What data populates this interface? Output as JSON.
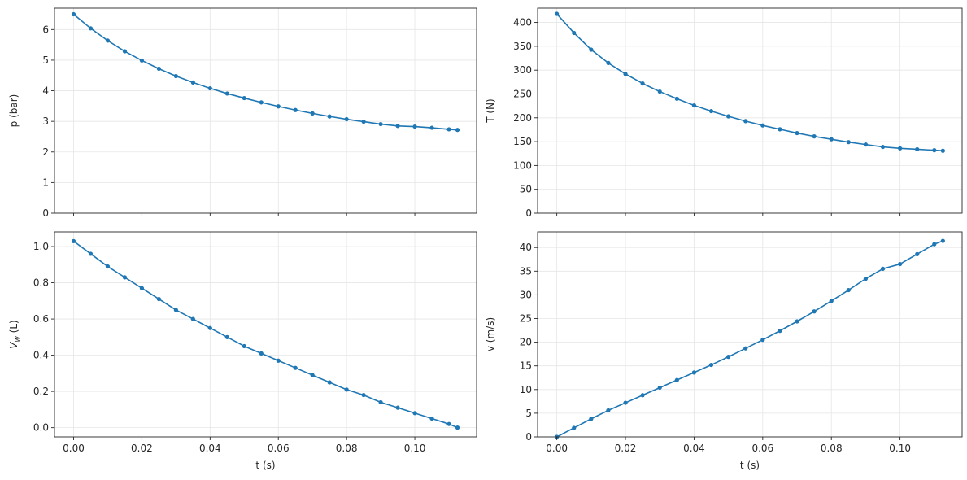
{
  "figure": {
    "background": "#ffffff",
    "line_color": "#1f77b4",
    "grid_color": "#e6e6e6",
    "spine_color": "#262626"
  },
  "chart_data": [
    {
      "type": "line",
      "xlabel": "",
      "ylabel": "p (bar)",
      "xlim": [
        -0.0056,
        0.1181
      ],
      "ylim": [
        0,
        6.7
      ],
      "xticks": [
        0.0,
        0.02,
        0.04,
        0.06,
        0.08,
        0.1
      ],
      "xtick_labels": [],
      "yticks": [
        0,
        1,
        2,
        3,
        4,
        5,
        6
      ],
      "ytick_labels": [
        "0",
        "1",
        "2",
        "3",
        "4",
        "5",
        "6"
      ],
      "grid": true,
      "marker": "circle",
      "series": [
        {
          "x": [
            0.0,
            0.005,
            0.01,
            0.015,
            0.02,
            0.025,
            0.03,
            0.035,
            0.04,
            0.045,
            0.05,
            0.055,
            0.06,
            0.065,
            0.07,
            0.075,
            0.08,
            0.085,
            0.09,
            0.095,
            0.1,
            0.105,
            0.11,
            0.1125
          ],
          "y": [
            6.5,
            6.04,
            5.64,
            5.29,
            4.99,
            4.72,
            4.48,
            4.27,
            4.08,
            3.91,
            3.76,
            3.62,
            3.49,
            3.37,
            3.26,
            3.16,
            3.07,
            2.99,
            2.91,
            2.85,
            2.83,
            2.79,
            2.74,
            2.72
          ]
        }
      ]
    },
    {
      "type": "line",
      "xlabel": "",
      "ylabel": "T (N)",
      "xlim": [
        -0.0056,
        0.1181
      ],
      "ylim": [
        0,
        430
      ],
      "xticks": [
        0.0,
        0.02,
        0.04,
        0.06,
        0.08,
        0.1
      ],
      "xtick_labels": [],
      "yticks": [
        0,
        50,
        100,
        150,
        200,
        250,
        300,
        350,
        400
      ],
      "ytick_labels": [
        "0",
        "50",
        "100",
        "150",
        "200",
        "250",
        "300",
        "350",
        "400"
      ],
      "grid": true,
      "marker": "circle",
      "series": [
        {
          "x": [
            0.0,
            0.005,
            0.01,
            0.015,
            0.02,
            0.025,
            0.03,
            0.035,
            0.04,
            0.045,
            0.05,
            0.055,
            0.06,
            0.065,
            0.07,
            0.075,
            0.08,
            0.085,
            0.09,
            0.095,
            0.1,
            0.105,
            0.11,
            0.1125
          ],
          "y": [
            418,
            378,
            343,
            315,
            292,
            272,
            255,
            240,
            226,
            214,
            203,
            193,
            184,
            176,
            168,
            161,
            155,
            149,
            144,
            139,
            136,
            134,
            132,
            131
          ]
        }
      ]
    },
    {
      "type": "line",
      "xlabel": "t (s)",
      "ylabel": "V",
      "ylabel_subscript": "w",
      "ylabel_suffix": " (L)",
      "xlim": [
        -0.0056,
        0.1181
      ],
      "ylim": [
        -0.051,
        1.081
      ],
      "xticks": [
        0.0,
        0.02,
        0.04,
        0.06,
        0.08,
        0.1
      ],
      "xtick_labels": [
        "0.00",
        "0.02",
        "0.04",
        "0.06",
        "0.08",
        "0.10"
      ],
      "yticks": [
        0.0,
        0.2,
        0.4,
        0.6,
        0.8,
        1.0
      ],
      "ytick_labels": [
        "0.0",
        "0.2",
        "0.4",
        "0.6",
        "0.8",
        "1.0"
      ],
      "grid": true,
      "marker": "circle",
      "series": [
        {
          "x": [
            0.0,
            0.005,
            0.01,
            0.015,
            0.02,
            0.025,
            0.03,
            0.035,
            0.04,
            0.045,
            0.05,
            0.055,
            0.06,
            0.065,
            0.07,
            0.075,
            0.08,
            0.085,
            0.09,
            0.095,
            0.1,
            0.105,
            0.11,
            0.1125
          ],
          "y": [
            1.03,
            0.96,
            0.89,
            0.83,
            0.77,
            0.71,
            0.65,
            0.6,
            0.55,
            0.5,
            0.45,
            0.41,
            0.37,
            0.33,
            0.29,
            0.25,
            0.21,
            0.18,
            0.14,
            0.11,
            0.08,
            0.05,
            0.02,
            0.0
          ]
        }
      ]
    },
    {
      "type": "line",
      "xlabel": "t (s)",
      "ylabel": "v (m/s)",
      "xlim": [
        -0.0056,
        0.1181
      ],
      "ylim": [
        0,
        43.3
      ],
      "xticks": [
        0.0,
        0.02,
        0.04,
        0.06,
        0.08,
        0.1
      ],
      "xtick_labels": [
        "0.00",
        "0.02",
        "0.04",
        "0.06",
        "0.08",
        "0.10"
      ],
      "yticks": [
        0,
        5,
        10,
        15,
        20,
        25,
        30,
        35,
        40
      ],
      "ytick_labels": [
        "0",
        "5",
        "10",
        "15",
        "20",
        "25",
        "30",
        "35",
        "40"
      ],
      "grid": true,
      "marker": "circle",
      "series": [
        {
          "x": [
            0.0,
            0.005,
            0.01,
            0.015,
            0.02,
            0.025,
            0.03,
            0.035,
            0.04,
            0.045,
            0.05,
            0.055,
            0.06,
            0.065,
            0.07,
            0.075,
            0.08,
            0.085,
            0.09,
            0.095,
            0.1,
            0.105,
            0.11,
            0.1125
          ],
          "y": [
            0.0,
            1.9,
            3.8,
            5.6,
            7.2,
            8.8,
            10.4,
            12.0,
            13.6,
            15.2,
            16.9,
            18.7,
            20.5,
            22.4,
            24.4,
            26.5,
            28.7,
            31.0,
            33.4,
            35.5,
            36.5,
            38.6,
            40.7,
            41.4
          ]
        }
      ]
    }
  ]
}
